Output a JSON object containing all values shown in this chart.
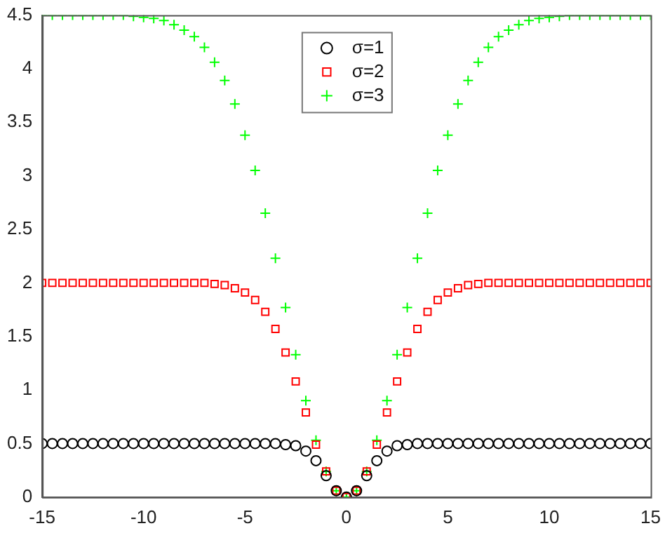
{
  "chart_data": {
    "type": "scatter",
    "x": [
      -15,
      -14.5,
      -14,
      -13.5,
      -13,
      -12.5,
      -12,
      -11.5,
      -11,
      -10.5,
      -10,
      -9.5,
      -9,
      -8.5,
      -8,
      -7.5,
      -7,
      -6.5,
      -6,
      -5.5,
      -5,
      -4.5,
      -4,
      -3.5,
      -3,
      -2.5,
      -2,
      -1.5,
      -1,
      -0.5,
      0,
      0.5,
      1,
      1.5,
      2,
      2.5,
      3,
      3.5,
      4,
      4.5,
      5,
      5.5,
      6,
      6.5,
      7,
      7.5,
      8,
      8.5,
      9,
      9.5,
      10,
      10.5,
      11,
      11.5,
      12,
      12.5,
      13,
      13.5,
      14,
      14.5,
      15
    ],
    "series": [
      {
        "name": "σ=1",
        "color": "#000000",
        "marker": "circle",
        "values": [
          0.5,
          0.5,
          0.5,
          0.5,
          0.5,
          0.5,
          0.5,
          0.5,
          0.5,
          0.5,
          0.5,
          0.5,
          0.5,
          0.5,
          0.5,
          0.5,
          0.5,
          0.5,
          0.5,
          0.5,
          0.5,
          0.5,
          0.5,
          0.5,
          0.49,
          0.48,
          0.43,
          0.34,
          0.2,
          0.06,
          0,
          0.06,
          0.2,
          0.34,
          0.43,
          0.48,
          0.49,
          0.5,
          0.5,
          0.5,
          0.5,
          0.5,
          0.5,
          0.5,
          0.5,
          0.5,
          0.5,
          0.5,
          0.5,
          0.5,
          0.5,
          0.5,
          0.5,
          0.5,
          0.5,
          0.5,
          0.5,
          0.5,
          0.5,
          0.5,
          0.5
        ]
      },
      {
        "name": "σ=2",
        "color": "#ff0000",
        "marker": "square",
        "values": [
          2,
          2,
          2,
          2,
          2,
          2,
          2,
          2,
          2,
          2,
          2,
          2,
          2,
          2,
          2,
          2,
          2,
          1.99,
          1.98,
          1.95,
          1.91,
          1.84,
          1.73,
          1.57,
          1.35,
          1.08,
          0.79,
          0.49,
          0.24,
          0.06,
          0,
          0.06,
          0.24,
          0.49,
          0.79,
          1.08,
          1.35,
          1.57,
          1.73,
          1.84,
          1.91,
          1.95,
          1.98,
          1.99,
          2,
          2,
          2,
          2,
          2,
          2,
          2,
          2,
          2,
          2,
          2,
          2,
          2,
          2,
          2,
          2,
          2
        ]
      },
      {
        "name": "σ=3",
        "color": "#00ff00",
        "marker": "cross",
        "values": [
          4.5,
          4.5,
          4.5,
          4.5,
          4.5,
          4.5,
          4.5,
          4.5,
          4.5,
          4.49,
          4.48,
          4.47,
          4.45,
          4.41,
          4.36,
          4.3,
          4.2,
          4.06,
          3.89,
          3.67,
          3.38,
          3.05,
          2.65,
          2.23,
          1.77,
          1.33,
          0.9,
          0.53,
          0.24,
          0.06,
          0,
          0.06,
          0.24,
          0.53,
          0.9,
          1.33,
          1.77,
          2.23,
          2.65,
          3.05,
          3.38,
          3.67,
          3.89,
          4.06,
          4.2,
          4.3,
          4.36,
          4.41,
          4.45,
          4.47,
          4.48,
          4.49,
          4.5,
          4.5,
          4.5,
          4.5,
          4.5,
          4.5,
          4.5,
          4.5,
          4.5
        ]
      }
    ],
    "xlim": [
      -15,
      15
    ],
    "xticks": [
      -15,
      -10,
      -5,
      0,
      5,
      10,
      15
    ],
    "ylim": [
      0,
      4.5
    ],
    "yticks": [
      0,
      0.5,
      1,
      1.5,
      2,
      2.5,
      3,
      3.5,
      4,
      4.5
    ],
    "grid": false,
    "legend": "top"
  }
}
